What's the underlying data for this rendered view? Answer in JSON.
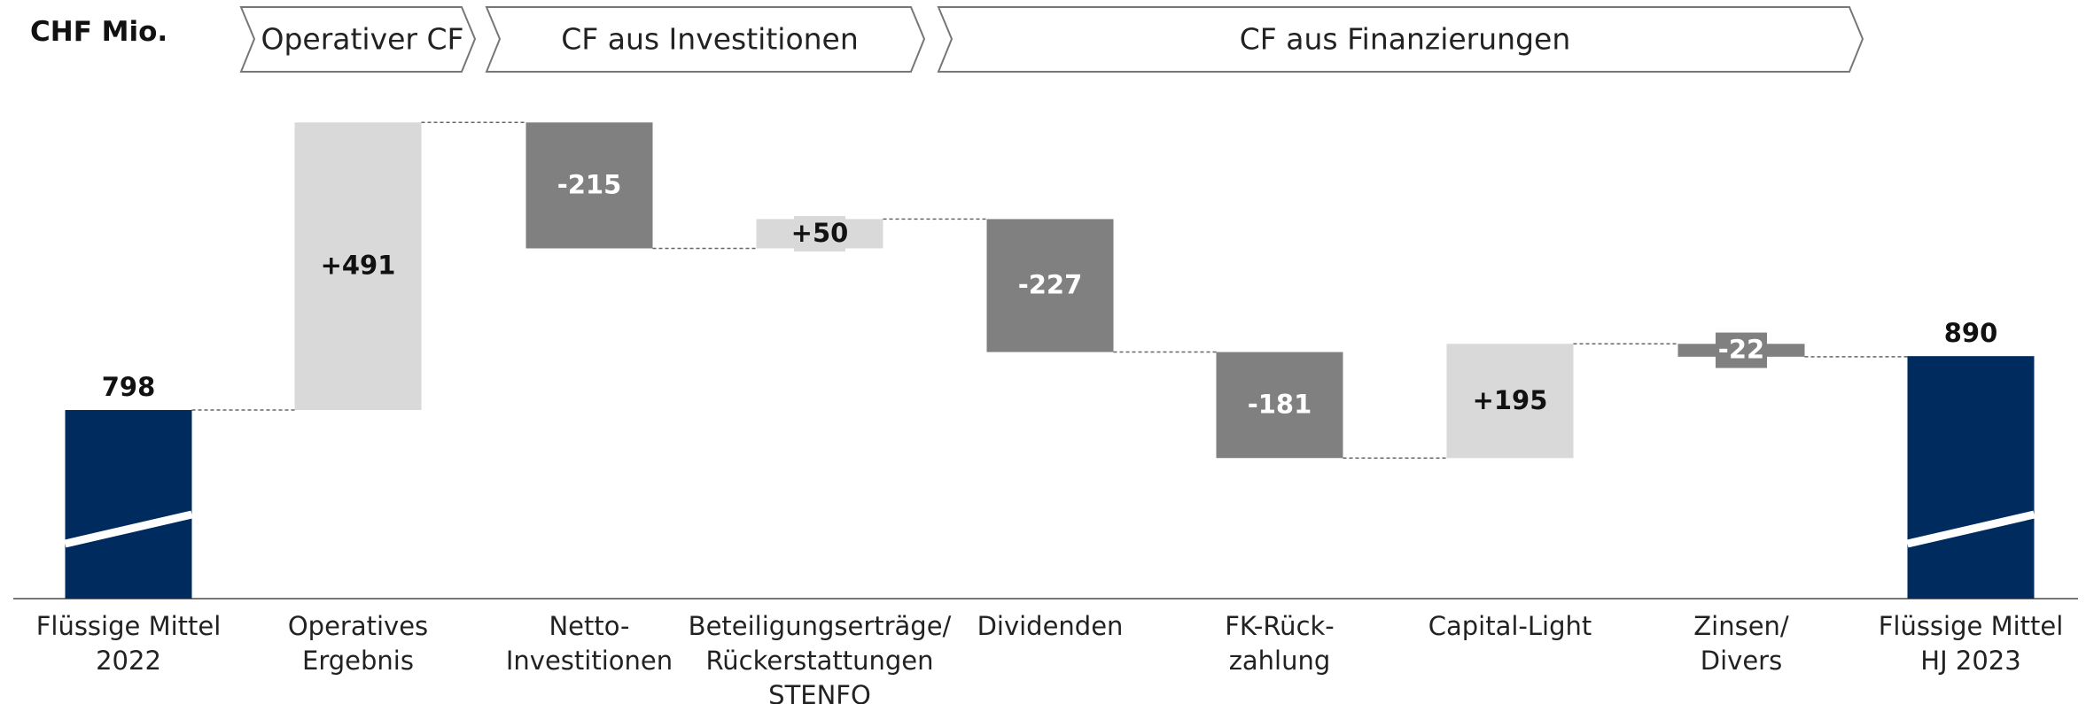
{
  "chart_data": {
    "type": "waterfall",
    "unit": "CHF Mio.",
    "groups": [
      "Operativer CF",
      "CF aus Investitionen",
      "CF aus Finanzierungen"
    ],
    "categories": [
      "Flüssige Mittel\n2022",
      "Operatives\nErgebnis",
      "Netto-\nInvestitionen",
      "Beteiligungserträge/\nRückerstattungen\nSTENFO",
      "Dividenden",
      "FK-Rück-\nzahlung",
      "Capital-Light",
      "Zinsen/\nDivers",
      "Flüssige Mittel\nHJ 2023"
    ],
    "values": [
      798,
      491,
      -215,
      50,
      -227,
      -181,
      195,
      -22,
      890
    ],
    "value_labels": [
      "798",
      "+491",
      "-215",
      "+50",
      "-227",
      "-181",
      "+195",
      "-22",
      "890"
    ],
    "totals": [
      0,
      8
    ],
    "colors": {
      "total": "#002b5e",
      "increase": "#d9d9d9",
      "decrease": "#808080"
    },
    "ylim": [
      476,
      1300
    ]
  }
}
